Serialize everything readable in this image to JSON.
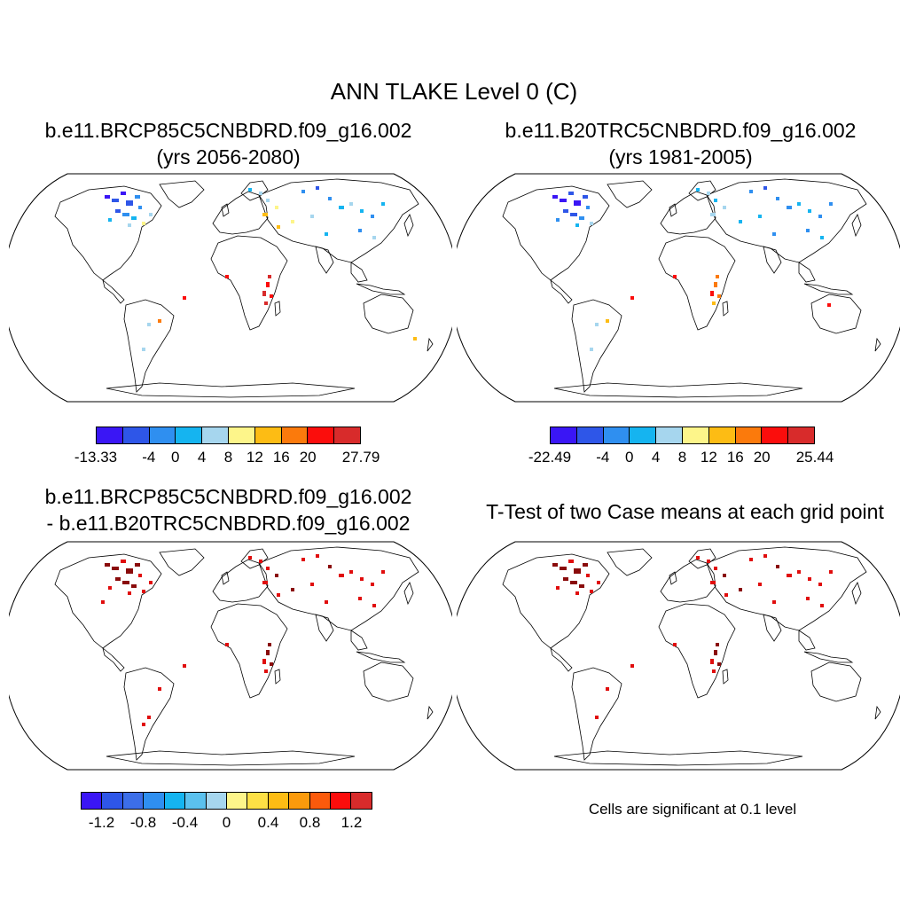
{
  "figure": {
    "title": "ANN TLAKE Level 0 (C)",
    "significance_note": "Cells are significant at 0.1 level"
  },
  "panels": [
    {
      "title_line1": "b.e11.BRCP85C5CNBDRD.f09_g16.002",
      "title_line2": "(yrs 2056-2080)"
    },
    {
      "title_line1": "b.e11.B20TRC5CNBDRD.f09_g16.002",
      "title_line2": "(yrs 1981-2005)"
    },
    {
      "title_line1": "b.e11.BRCP85C5CNBDRD.f09_g16.002",
      "title_line2": "- b.e11.B20TRC5CNBDRD.f09_g16.002"
    },
    {
      "title_line1": "T-Test of two Case means at each grid point"
    }
  ],
  "colorbars": [
    {
      "labels": [
        "-13.33",
        "-4",
        "0",
        "4",
        "8",
        "12",
        "16",
        "20",
        "27.79"
      ],
      "label_boundaries": [
        0,
        2,
        3,
        4,
        5,
        6,
        7,
        8,
        10
      ],
      "colors": [
        "#3a16f5",
        "#2e56e8",
        "#2f8ff0",
        "#15b4f0",
        "#a6d6ee",
        "#fdf58a",
        "#fdbc14",
        "#fb7a0c",
        "#fb0d0c",
        "#d82b2b"
      ]
    },
    {
      "labels": [
        "-22.49",
        "-4",
        "0",
        "4",
        "8",
        "12",
        "16",
        "20",
        "25.44"
      ],
      "label_boundaries": [
        0,
        2,
        3,
        4,
        5,
        6,
        7,
        8,
        10
      ],
      "colors": [
        "#3a16f5",
        "#2e56e8",
        "#2f8ff0",
        "#15b4f0",
        "#a6d6ee",
        "#fdf58a",
        "#fdbc14",
        "#fb7a0c",
        "#fb0d0c",
        "#d82b2b"
      ]
    },
    {
      "labels": [
        "-1.2",
        "-0.8",
        "-0.4",
        "0",
        "0.4",
        "0.8",
        "1.2"
      ],
      "label_boundaries": [
        1,
        3,
        5,
        7,
        9,
        11,
        13
      ],
      "colors": [
        "#3a16f5",
        "#2e56e8",
        "#3c6ee8",
        "#2f8ff0",
        "#15b4f0",
        "#5bc1ee",
        "#a6d6ee",
        "#fdf58a",
        "#fde045",
        "#fdbc14",
        "#fb9a0c",
        "#fb5a0c",
        "#fb0d0c",
        "#d82b2b"
      ]
    }
  ],
  "map_fill": {
    "land": "#ffffff",
    "coastline": "#000000",
    "dark_red": "#8a0b0b",
    "red": "#e00d0d"
  }
}
